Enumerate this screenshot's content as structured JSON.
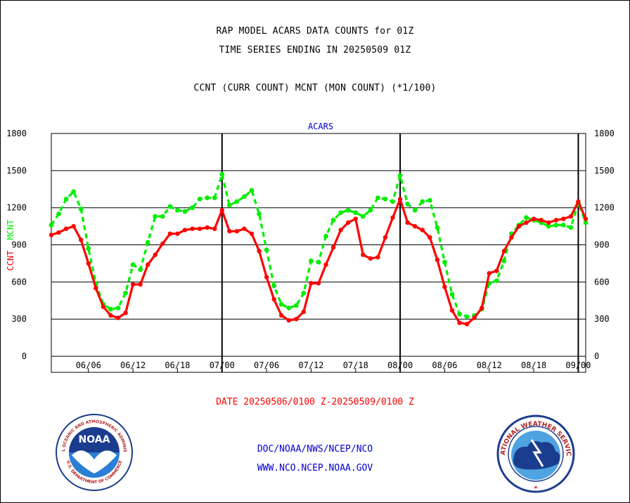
{
  "header": {
    "line1": "RAP MODEL ACARS DATA COUNTS for 01Z",
    "line2": "TIME SERIES ENDING IN 20250509 01Z",
    "line3": "CCNT (CURR COUNT) MCNT (MON COUNT) (*1/100)"
  },
  "footer": {
    "date_range": "DATE 20250506/0100 Z-20250509/0100 Z",
    "org_path": "DOC/NOAA/NWS/NCEP/NCO",
    "website": "WWW.NCO.NCEP.NOAA.GOV"
  },
  "logos": {
    "noaa_text": "NOAA",
    "noaa_ring_top": "NATIONAL OCEANIC AND ATMOSPHERIC ADMINISTRATION",
    "noaa_ring_bottom": "U.S. DEPARTMENT OF COMMERCE",
    "nws_ring_top": "NATIONAL WEATHER SERVICE"
  },
  "colors": {
    "ccnt": "#ff0000",
    "mcnt": "#00ee00",
    "title": "#0000cc",
    "date": "#ff0000",
    "footer": "#0000cc"
  },
  "chart_data": {
    "type": "line",
    "title": "ACARS",
    "ylabel_left_1": "CCNT",
    "ylabel_left_2": "MCNT",
    "ylim": [
      -130,
      1800
    ],
    "yticks": [
      0,
      300,
      600,
      900,
      1200,
      1500,
      1800
    ],
    "x_hours_range": [
      0,
      72
    ],
    "xtick_labels": [
      "06/06",
      "06/12",
      "06/18",
      "07/00",
      "07/06",
      "07/12",
      "07/18",
      "08/00",
      "08/06",
      "08/12",
      "08/18",
      "09/00"
    ],
    "day_boundaries": [
      "07/00",
      "08/00",
      "09/00"
    ],
    "grid": true,
    "series": [
      {
        "name": "CCNT",
        "values": [
          980,
          1000,
          1030,
          1050,
          940,
          750,
          550,
          400,
          330,
          310,
          350,
          580,
          580,
          740,
          820,
          910,
          990,
          990,
          1020,
          1030,
          1030,
          1040,
          1030,
          1180,
          1010,
          1010,
          1030,
          990,
          850,
          640,
          460,
          330,
          290,
          300,
          360,
          590,
          590,
          740,
          880,
          1020,
          1080,
          1110,
          820,
          790,
          800,
          960,
          1120,
          1270,
          1080,
          1050,
          1020,
          960,
          780,
          560,
          370,
          270,
          260,
          310,
          390,
          670,
          690,
          850,
          960,
          1050,
          1080,
          1110,
          1100,
          1080,
          1100,
          1110,
          1130,
          1250,
          1110
        ]
      },
      {
        "name": "MCNT",
        "values": [
          1060,
          1150,
          1270,
          1330,
          1190,
          870,
          590,
          420,
          380,
          390,
          510,
          740,
          700,
          920,
          1130,
          1130,
          1210,
          1180,
          1170,
          1200,
          1270,
          1280,
          1280,
          1470,
          1220,
          1250,
          1290,
          1340,
          1150,
          860,
          570,
          420,
          390,
          410,
          510,
          770,
          760,
          970,
          1100,
          1160,
          1180,
          1160,
          1130,
          1180,
          1280,
          1270,
          1250,
          1460,
          1230,
          1180,
          1250,
          1260,
          1040,
          760,
          500,
          340,
          320,
          330,
          380,
          590,
          610,
          770,
          990,
          1060,
          1120,
          1100,
          1080,
          1050,
          1060,
          1060,
          1040,
          1240,
          1080
        ]
      }
    ]
  }
}
